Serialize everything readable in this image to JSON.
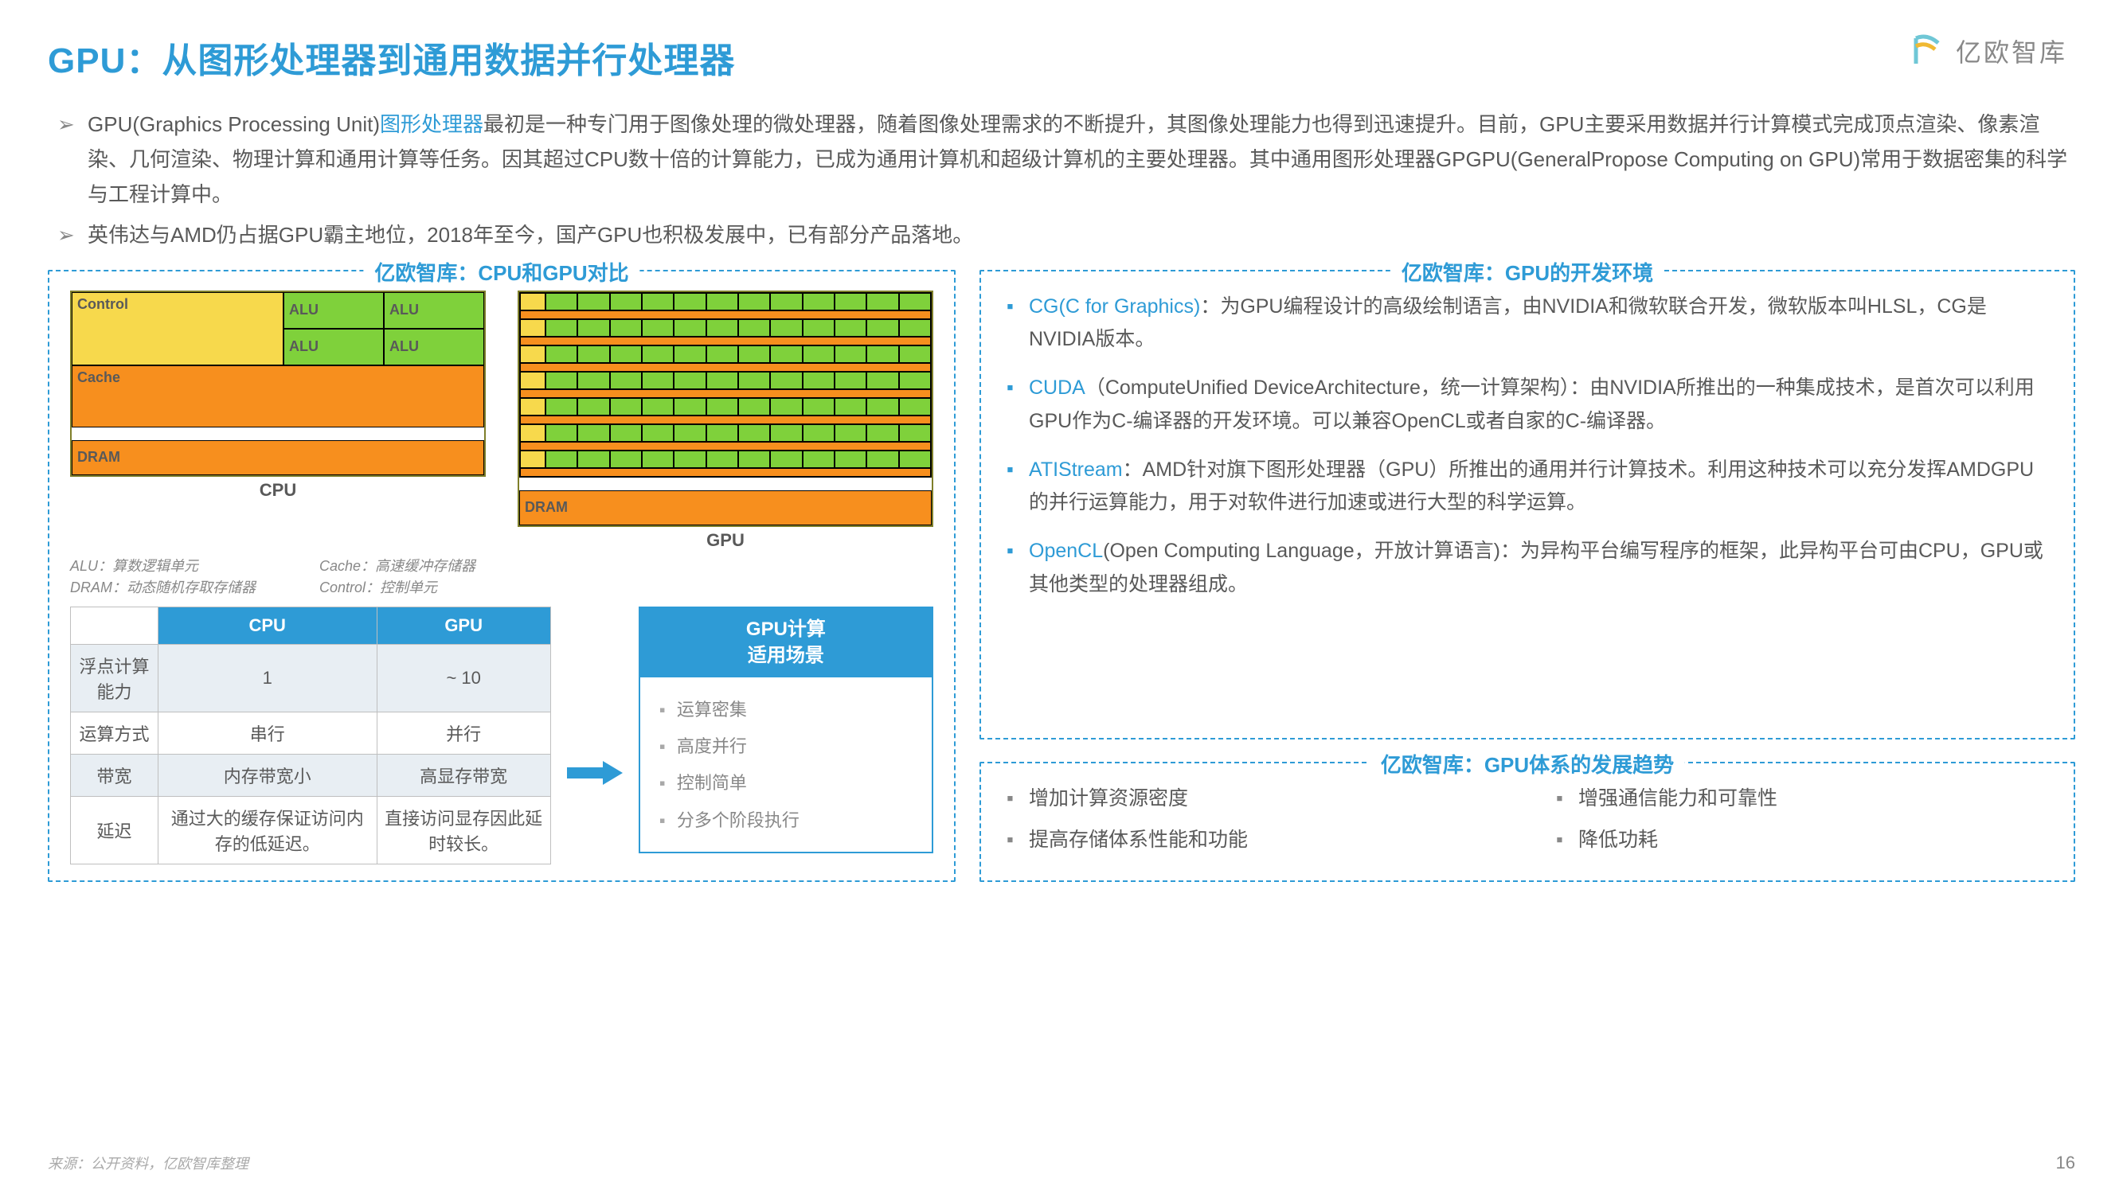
{
  "title": "GPU：从图形处理器到通用数据并行处理器",
  "logo_text": "亿欧智库",
  "intro": [
    {
      "pre": "GPU(Graphics Processing Unit)",
      "blue": "图形处理器",
      "post": "最初是一种专门用于图像处理的微处理器，随着图像处理需求的不断提升，其图像处理能力也得到迅速提升。目前，GPU主要采用数据并行计算模式完成顶点渲染、像素渲染、几何渲染、物理计算和通用计算等任务。因其超过CPU数十倍的计算能力，已成为通用计算机和超级计算机的主要处理器。其中通用图形处理器GPGPU(GeneralPropose Computing on GPU)常用于数据密集的科学与工程计算中。"
    },
    {
      "pre": "英伟达与AMD仍占据GPU霸主地位，2018年至今，国产GPU也积极发展中，已有部分产品落地。",
      "blue": "",
      "post": ""
    }
  ],
  "box_cmp_title": "亿欧智库：CPU和GPU对比",
  "box_env_title": "亿欧智库：GPU的开发环境",
  "box_trend_title": "亿欧智库：GPU体系的发展趋势",
  "diag": {
    "control": "Control",
    "alu": "ALU",
    "cache": "Cache",
    "dram": "DRAM",
    "cpu_label": "CPU",
    "gpu_label": "GPU"
  },
  "notes": {
    "l1": "ALU：算数逻辑单元",
    "l2": "DRAM：动态随机存取存储器",
    "r1": "Cache：高速缓冲存储器",
    "r2": "Control：控制单元"
  },
  "table": {
    "h_cpu": "CPU",
    "h_gpu": "GPU",
    "rows": [
      {
        "k": "浮点计算能力",
        "c": "1",
        "g": "~ 10"
      },
      {
        "k": "运算方式",
        "c": "串行",
        "g": "并行"
      },
      {
        "k": "带宽",
        "c": "内存带宽小",
        "g": "高显存带宽"
      },
      {
        "k": "延迟",
        "c": "通过大的缓存保证访问内存的低延迟。",
        "g": "直接访问显存因此延时较长。"
      }
    ]
  },
  "scene": {
    "title1": "GPU计算",
    "title2": "适用场景",
    "items": [
      "运算密集",
      "高度并行",
      "控制简单",
      "分多个阶段执行"
    ]
  },
  "env": [
    {
      "b": "CG(C for Graphics)",
      "t": "：为GPU编程设计的高级绘制语言，由NVIDIA和微软联合开发，微软版本叫HLSL，CG是NVIDIA版本。"
    },
    {
      "b": "CUDA",
      "t": "（ComputeUnified DeviceArchitecture，统一计算架构）：由NVIDIA所推出的一种集成技术，是首次可以利用GPU作为C-编译器的开发环境。可以兼容OpenCL或者自家的C-编译器。"
    },
    {
      "b": "ATIStream",
      "t": "：AMD针对旗下图形处理器（GPU）所推出的通用并行计算技术。利用这种技术可以充分发挥AMDGPU的并行运算能力，用于对软件进行加速或进行大型的科学运算。"
    },
    {
      "b": "OpenCL",
      "t": "(Open Computing Language，开放计算语言)：为异构平台编写程序的框架，此异构平台可由CPU，GPU或其他类型的处理器组成。"
    }
  ],
  "trends_l": [
    "增加计算资源密度",
    "提高存储体系性能和功能"
  ],
  "trends_r": [
    "增强通信能力和可靠性",
    "降低功耗"
  ],
  "source": "来源：公开资料，亿欧智库整理",
  "page": "16"
}
